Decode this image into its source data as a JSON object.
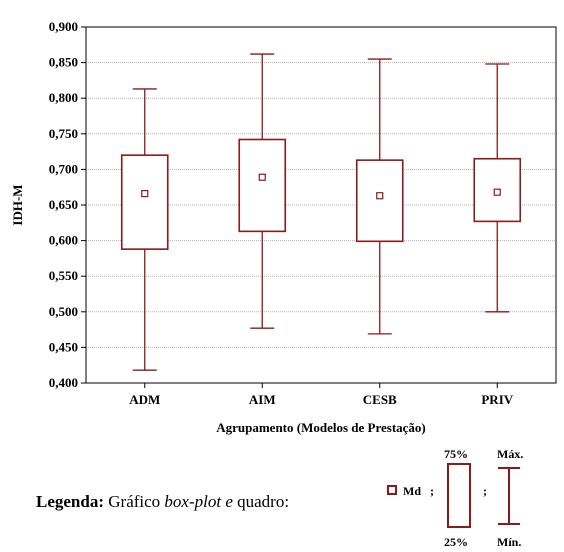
{
  "chart_data": {
    "type": "box",
    "categories": [
      "ADM",
      "AIM",
      "CESB",
      "PRIV"
    ],
    "series": [
      {
        "category": "ADM",
        "min": 0.418,
        "q1": 0.588,
        "median": 0.666,
        "q3": 0.72,
        "max": 0.813
      },
      {
        "category": "AIM",
        "min": 0.477,
        "q1": 0.613,
        "median": 0.689,
        "q3": 0.742,
        "max": 0.862
      },
      {
        "category": "CESB",
        "min": 0.469,
        "q1": 0.599,
        "median": 0.663,
        "q3": 0.713,
        "max": 0.855
      },
      {
        "category": "PRIV",
        "min": 0.5,
        "q1": 0.627,
        "median": 0.668,
        "q3": 0.715,
        "max": 0.848
      }
    ],
    "title": "",
    "xlabel": "Agrupamento (Modelos de Prestação)",
    "ylabel": "IDH-M",
    "ylim": [
      0.4,
      0.9
    ],
    "yticks": [
      "0,400",
      "0,450",
      "0,500",
      "0,550",
      "0,600",
      "0,650",
      "0,700",
      "0,750",
      "0,800",
      "0,850",
      "0,900"
    ],
    "grid": true,
    "colors": {
      "box": "#8b1a1a",
      "grid": "#b4b4b4",
      "axis": "#000000"
    }
  },
  "legend": {
    "caption_bold": "Legenda:",
    "caption_text": " Gráfico ",
    "caption_italic": "box-plot e",
    "caption_end": " quadro:",
    "median_label": "Md",
    "sep1": ";",
    "sep2": ";",
    "q3_label": "75%",
    "q1_label": "25%",
    "max_label": "Máx.",
    "min_label": "Mín."
  }
}
